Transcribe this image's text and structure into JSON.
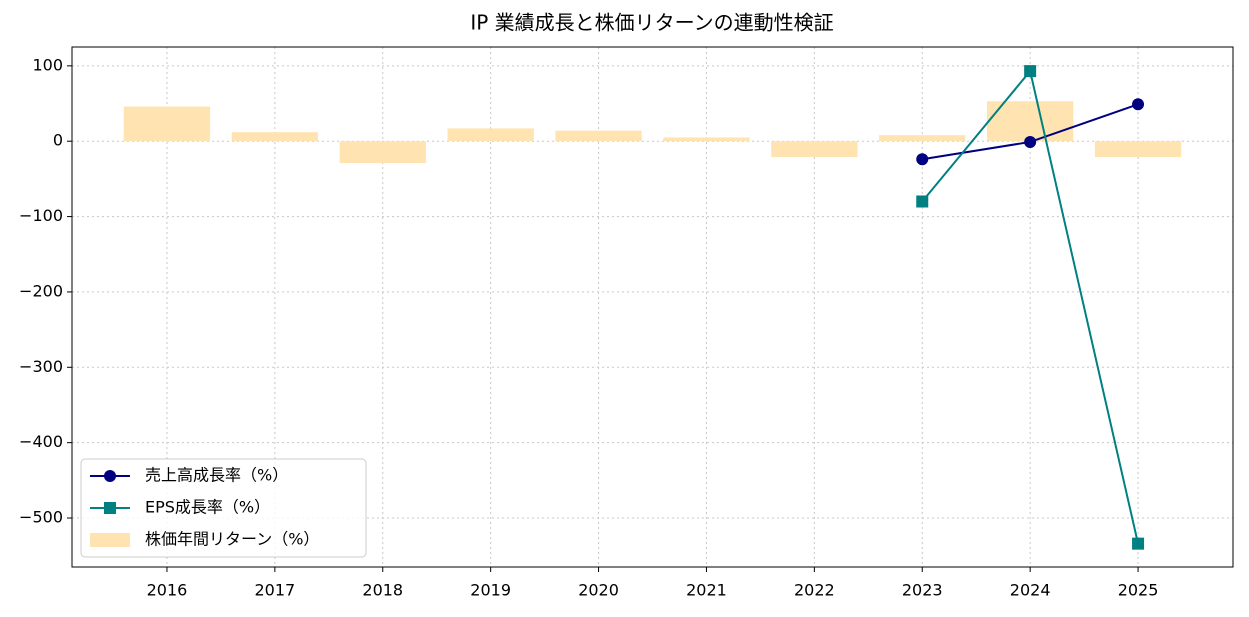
{
  "chart_data": {
    "type": "combo",
    "title": "IP 業績成長と株価リターンの連動性検証",
    "x": [
      2016,
      2017,
      2018,
      2019,
      2020,
      2021,
      2022,
      2023,
      2024,
      2025
    ],
    "xlim": [
      2015.12,
      2025.88
    ],
    "xticks": [
      2016,
      2017,
      2018,
      2019,
      2020,
      2021,
      2022,
      2023,
      2024,
      2025
    ],
    "ylim": [
      -565,
      125
    ],
    "yticks": [
      100,
      0,
      {
        "value": -100,
        "label": "−100"
      },
      {
        "value": -200,
        "label": "−200"
      },
      {
        "value": -300,
        "label": "−300"
      },
      {
        "value": -400,
        "label": "−400"
      },
      {
        "value": -500,
        "label": "−500"
      }
    ],
    "grid": true,
    "legend": "lower left",
    "series": [
      {
        "name": "売上高成長率（%）",
        "type": "line",
        "marker": "circle",
        "color": "#000080",
        "values": [
          null,
          null,
          null,
          null,
          null,
          null,
          null,
          -24,
          -1,
          49
        ]
      },
      {
        "name": "EPS成長率（%）",
        "type": "line",
        "marker": "square",
        "color": "#008080",
        "values": [
          null,
          null,
          null,
          null,
          null,
          null,
          null,
          -80,
          93,
          -534
        ]
      },
      {
        "name": "株価年間リターン（%）",
        "type": "bar",
        "color": "#ffe3b0",
        "values": [
          46,
          12,
          -29,
          17,
          14,
          5,
          -21,
          8,
          53,
          -21
        ]
      }
    ]
  }
}
